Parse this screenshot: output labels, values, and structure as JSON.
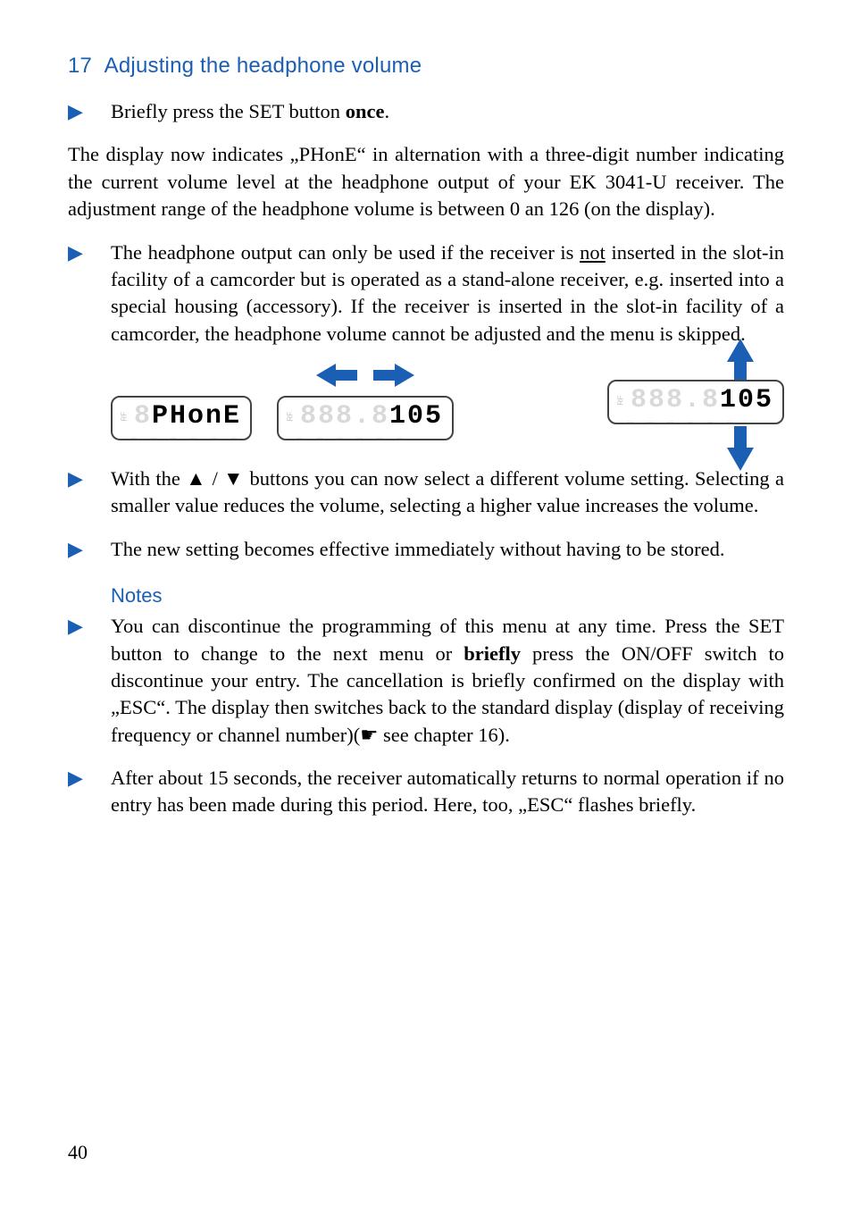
{
  "colors": {
    "accent": "#1a5fb4",
    "text": "#000000",
    "ghost": "#d9d9d9",
    "lcd_border": "#444444",
    "background": "#ffffff"
  },
  "typography": {
    "body_family": "Georgia, 'Times New Roman', serif",
    "body_size_pt": 17,
    "heading_family": "Arial, Helvetica, sans-serif",
    "heading_size_pt": 18,
    "lcd_family": "'Courier New', monospace"
  },
  "heading": {
    "num": "17",
    "text": "Adjusting the headphone volume"
  },
  "step1": {
    "pre": "Briefly press the SET button ",
    "bold": "once",
    "post": "."
  },
  "para1": "The display now indicates „PHonE“ in alternation with a three-digit number indicating the current volume level at the headphone output of your EK 3041-U receiver. The adjustment range of the headphone volume is between 0 an 126 (on the display).",
  "step2": {
    "pre": "The headphone output can only be used if the receiver is ",
    "underline": "not",
    "post": " inserted in the slot-in facility of a camcorder but is operated as a stand-alone receiver, e.g. inserted into a special housing (accessory). If the receiver is inserted in the slot-in facility of a camcorder, the headphone volume cannot be adjusted and the menu is skipped."
  },
  "lcd": {
    "rf_label": "RF",
    "display1_text": "PHonE",
    "display1_ghost_prefix": "8",
    "display2_ghost_prefix": "888.8",
    "display2_text": "105",
    "display3_ghost_prefix": "888.8",
    "display3_text": "105",
    "ghost_sub": "— — — — — —"
  },
  "step3": "With the ▲ / ▼ buttons you can now select a different volume setting. Selecting a smaller value reduces the volume, selecting a higher value increases the volume.",
  "step4": "The new setting becomes effective immediately without having to be stored.",
  "notes_heading": "Notes",
  "note1": {
    "pre": "You can discontinue the programming of this menu at any time. Press the SET button to change to the next menu or ",
    "bold": "briefly",
    "post": " press the ON/OFF switch to discontinue your entry. The cancellation is briefly confirmed on the display with „ESC“. The display then switches back to the standard display (display of receiving frequency or channel number)(☛ see chapter 16)."
  },
  "note2": "After about 15 seconds, the receiver automatically returns to normal operation if no entry has been made during this period. Here, too, „ESC“ flashes briefly.",
  "page_number": "40"
}
